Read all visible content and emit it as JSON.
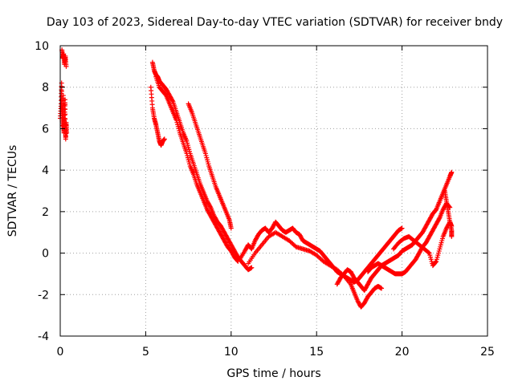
{
  "chart_data": {
    "type": "scatter",
    "title": "Day 103 of 2023, Sidereal Day-to-day VTEC variation (SDTVAR) for receiver bndy",
    "xlabel": "GPS time / hours",
    "ylabel": "SDTVAR / TECUs",
    "xlim": [
      0,
      25
    ],
    "ylim": [
      -4,
      10
    ],
    "xticks": [
      0,
      5,
      10,
      15,
      20,
      25
    ],
    "yticks": [
      -4,
      -2,
      0,
      2,
      4,
      6,
      8,
      10
    ],
    "xtick_labels": [
      "0",
      "5",
      "10",
      "15",
      "20",
      "25"
    ],
    "ytick_labels": [
      "-4",
      "-2",
      "0",
      "2",
      "4",
      "6",
      "8",
      "10"
    ],
    "grid": true,
    "marker": "+",
    "series": [
      {
        "name": "SDTVAR",
        "color": "#ff0000",
        "segments": [
          [
            [
              0.0,
              6.5
            ],
            [
              0.05,
              7.2
            ],
            [
              0.08,
              8.2
            ],
            [
              0.1,
              7.0
            ],
            [
              0.12,
              6.0
            ],
            [
              0.15,
              6.8
            ],
            [
              0.18,
              7.6
            ],
            [
              0.2,
              6.2
            ],
            [
              0.22,
              5.8
            ],
            [
              0.25,
              6.5
            ],
            [
              0.28,
              7.4
            ],
            [
              0.3,
              6.0
            ],
            [
              0.32,
              5.5
            ],
            [
              0.35,
              6.3
            ],
            [
              0.38,
              5.8
            ]
          ],
          [
            [
              0.1,
              9.8
            ],
            [
              0.15,
              9.4
            ],
            [
              0.2,
              9.6
            ],
            [
              0.25,
              9.1
            ],
            [
              0.3,
              9.5
            ],
            [
              0.35,
              9.0
            ]
          ],
          [
            [
              5.3,
              8.0
            ],
            [
              5.4,
              7.0
            ],
            [
              5.5,
              6.5
            ],
            [
              5.6,
              6.2
            ],
            [
              5.7,
              5.8
            ],
            [
              5.8,
              5.4
            ],
            [
              5.9,
              5.2
            ],
            [
              6.0,
              5.4
            ],
            [
              6.1,
              5.5
            ]
          ],
          [
            [
              5.4,
              9.2
            ],
            [
              5.5,
              8.8
            ],
            [
              5.6,
              8.6
            ],
            [
              5.7,
              8.5
            ],
            [
              5.8,
              8.3
            ],
            [
              6.0,
              8.1
            ],
            [
              6.2,
              7.9
            ],
            [
              6.4,
              7.6
            ],
            [
              6.6,
              7.3
            ],
            [
              6.8,
              6.8
            ],
            [
              7.0,
              6.3
            ],
            [
              7.2,
              5.8
            ],
            [
              7.4,
              5.4
            ],
            [
              7.6,
              4.8
            ],
            [
              7.8,
              4.3
            ],
            [
              8.0,
              3.8
            ],
            [
              8.2,
              3.3
            ],
            [
              8.4,
              2.9
            ],
            [
              8.6,
              2.5
            ],
            [
              8.8,
              2.2
            ],
            [
              9.0,
              1.8
            ],
            [
              9.2,
              1.5
            ],
            [
              9.4,
              1.3
            ],
            [
              9.6,
              1.0
            ],
            [
              9.8,
              0.7
            ],
            [
              10.0,
              0.4
            ],
            [
              10.2,
              0.1
            ],
            [
              10.4,
              -0.2
            ],
            [
              10.6,
              -0.4
            ],
            [
              10.8,
              -0.6
            ],
            [
              11.0,
              -0.8
            ],
            [
              11.2,
              -0.7
            ]
          ],
          [
            [
              5.6,
              8.5
            ],
            [
              5.8,
              8.0
            ],
            [
              6.0,
              7.8
            ],
            [
              6.2,
              7.6
            ],
            [
              6.4,
              7.2
            ],
            [
              6.6,
              6.8
            ],
            [
              6.8,
              6.4
            ],
            [
              7.0,
              5.8
            ],
            [
              7.2,
              5.3
            ],
            [
              7.4,
              4.8
            ],
            [
              7.6,
              4.2
            ],
            [
              7.8,
              3.8
            ],
            [
              8.0,
              3.3
            ],
            [
              8.2,
              2.9
            ],
            [
              8.4,
              2.5
            ],
            [
              8.6,
              2.1
            ],
            [
              8.8,
              1.8
            ],
            [
              9.0,
              1.5
            ],
            [
              9.2,
              1.2
            ],
            [
              9.4,
              0.9
            ],
            [
              9.6,
              0.6
            ],
            [
              9.8,
              0.3
            ],
            [
              10.0,
              0.1
            ],
            [
              10.2,
              -0.2
            ],
            [
              10.4,
              -0.4
            ]
          ],
          [
            [
              7.5,
              7.2
            ],
            [
              7.7,
              6.8
            ],
            [
              7.9,
              6.3
            ],
            [
              8.1,
              5.8
            ],
            [
              8.3,
              5.3
            ],
            [
              8.5,
              4.8
            ],
            [
              8.7,
              4.2
            ],
            [
              8.9,
              3.7
            ],
            [
              9.1,
              3.2
            ],
            [
              9.3,
              2.8
            ],
            [
              9.5,
              2.4
            ],
            [
              9.7,
              2.0
            ],
            [
              9.9,
              1.6
            ],
            [
              10.0,
              1.2
            ]
          ],
          [
            [
              10.5,
              -0.3
            ],
            [
              10.8,
              0.1
            ],
            [
              11.0,
              0.4
            ],
            [
              11.2,
              0.2
            ],
            [
              11.4,
              0.6
            ],
            [
              11.6,
              0.9
            ],
            [
              11.8,
              1.1
            ],
            [
              12.0,
              1.2
            ],
            [
              12.2,
              1.0
            ],
            [
              12.4,
              1.2
            ],
            [
              12.6,
              1.5
            ],
            [
              12.8,
              1.3
            ],
            [
              13.0,
              1.1
            ],
            [
              13.2,
              1.0
            ],
            [
              13.4,
              1.1
            ],
            [
              13.6,
              1.2
            ],
            [
              13.8,
              1.0
            ],
            [
              14.0,
              0.9
            ],
            [
              14.2,
              0.6
            ],
            [
              14.4,
              0.5
            ],
            [
              14.6,
              0.4
            ],
            [
              14.8,
              0.3
            ],
            [
              15.0,
              0.2
            ],
            [
              15.2,
              0.1
            ],
            [
              15.4,
              -0.1
            ],
            [
              15.6,
              -0.3
            ],
            [
              15.8,
              -0.5
            ],
            [
              16.0,
              -0.7
            ],
            [
              16.2,
              -0.9
            ],
            [
              16.4,
              -1.0
            ],
            [
              16.6,
              -1.1
            ],
            [
              16.8,
              -1.2
            ],
            [
              17.0,
              -1.3
            ],
            [
              17.2,
              -1.4
            ],
            [
              17.4,
              -1.3
            ],
            [
              17.6,
              -1.1
            ],
            [
              17.8,
              -0.9
            ],
            [
              18.0,
              -0.7
            ],
            [
              18.2,
              -0.5
            ],
            [
              18.4,
              -0.3
            ],
            [
              18.6,
              -0.1
            ],
            [
              18.8,
              0.1
            ],
            [
              19.0,
              0.3
            ],
            [
              19.2,
              0.5
            ],
            [
              19.4,
              0.7
            ],
            [
              19.6,
              0.9
            ],
            [
              19.8,
              1.1
            ],
            [
              20.0,
              1.2
            ]
          ],
          [
            [
              11.0,
              -0.5
            ],
            [
              11.4,
              0.0
            ],
            [
              11.8,
              0.4
            ],
            [
              12.2,
              0.8
            ],
            [
              12.6,
              1.0
            ],
            [
              13.0,
              0.8
            ],
            [
              13.4,
              0.6
            ],
            [
              13.8,
              0.3
            ],
            [
              14.2,
              0.2
            ],
            [
              14.6,
              0.1
            ],
            [
              15.0,
              -0.1
            ],
            [
              15.4,
              -0.4
            ],
            [
              15.8,
              -0.6
            ],
            [
              16.2,
              -0.8
            ],
            [
              16.6,
              -1.1
            ],
            [
              17.0,
              -1.5
            ],
            [
              17.2,
              -1.9
            ],
            [
              17.4,
              -2.3
            ],
            [
              17.6,
              -2.6
            ],
            [
              17.8,
              -2.4
            ],
            [
              18.0,
              -2.1
            ],
            [
              18.2,
              -1.9
            ],
            [
              18.4,
              -1.7
            ],
            [
              18.6,
              -1.6
            ],
            [
              18.8,
              -1.7
            ]
          ],
          [
            [
              16.2,
              -1.5
            ],
            [
              16.4,
              -1.2
            ],
            [
              16.6,
              -1.0
            ],
            [
              16.8,
              -0.8
            ],
            [
              17.0,
              -0.9
            ],
            [
              17.2,
              -1.2
            ],
            [
              17.4,
              -1.4
            ],
            [
              17.6,
              -1.6
            ],
            [
              17.8,
              -1.8
            ],
            [
              18.0,
              -1.5
            ],
            [
              18.2,
              -1.2
            ],
            [
              18.4,
              -1.0
            ],
            [
              18.6,
              -0.8
            ],
            [
              18.8,
              -0.6
            ],
            [
              19.0,
              -0.5
            ],
            [
              19.2,
              -0.4
            ],
            [
              19.4,
              -0.3
            ],
            [
              19.6,
              -0.2
            ],
            [
              19.8,
              -0.1
            ],
            [
              20.0,
              0.1
            ],
            [
              20.2,
              0.2
            ],
            [
              20.4,
              0.3
            ],
            [
              20.6,
              0.4
            ],
            [
              20.8,
              0.6
            ],
            [
              21.0,
              0.8
            ],
            [
              21.2,
              1.0
            ],
            [
              21.4,
              1.3
            ],
            [
              21.6,
              1.6
            ],
            [
              21.8,
              1.9
            ],
            [
              22.0,
              2.1
            ],
            [
              22.2,
              2.5
            ],
            [
              22.4,
              2.9
            ],
            [
              22.6,
              3.3
            ],
            [
              22.8,
              3.7
            ],
            [
              22.9,
              3.9
            ]
          ],
          [
            [
              18.0,
              -0.9
            ],
            [
              18.2,
              -0.7
            ],
            [
              18.4,
              -0.6
            ],
            [
              18.6,
              -0.5
            ],
            [
              18.8,
              -0.6
            ],
            [
              19.0,
              -0.7
            ],
            [
              19.2,
              -0.8
            ],
            [
              19.4,
              -0.9
            ],
            [
              19.6,
              -1.0
            ],
            [
              19.8,
              -1.0
            ],
            [
              20.0,
              -1.0
            ],
            [
              20.2,
              -0.9
            ],
            [
              20.4,
              -0.7
            ],
            [
              20.6,
              -0.5
            ],
            [
              20.8,
              -0.3
            ],
            [
              21.0,
              0.0
            ],
            [
              21.2,
              0.3
            ],
            [
              21.4,
              0.5
            ],
            [
              21.6,
              0.8
            ],
            [
              21.8,
              1.1
            ],
            [
              22.0,
              1.4
            ],
            [
              22.2,
              1.7
            ],
            [
              22.4,
              2.1
            ],
            [
              22.6,
              2.4
            ],
            [
              22.8,
              2.2
            ]
          ],
          [
            [
              19.5,
              0.2
            ],
            [
              19.8,
              0.5
            ],
            [
              20.1,
              0.7
            ],
            [
              20.4,
              0.8
            ],
            [
              20.7,
              0.6
            ],
            [
              21.0,
              0.4
            ],
            [
              21.3,
              0.2
            ],
            [
              21.6,
              0.0
            ],
            [
              21.8,
              -0.6
            ],
            [
              22.0,
              -0.4
            ],
            [
              22.2,
              0.2
            ],
            [
              22.4,
              0.8
            ],
            [
              22.6,
              1.2
            ],
            [
              22.8,
              1.5
            ],
            [
              22.9,
              1.3
            ]
          ],
          [
            [
              22.5,
              3.0
            ],
            [
              22.6,
              2.5
            ],
            [
              22.7,
              2.0
            ],
            [
              22.8,
              1.5
            ],
            [
              22.9,
              1.1
            ],
            [
              22.9,
              0.8
            ]
          ]
        ]
      }
    ]
  }
}
